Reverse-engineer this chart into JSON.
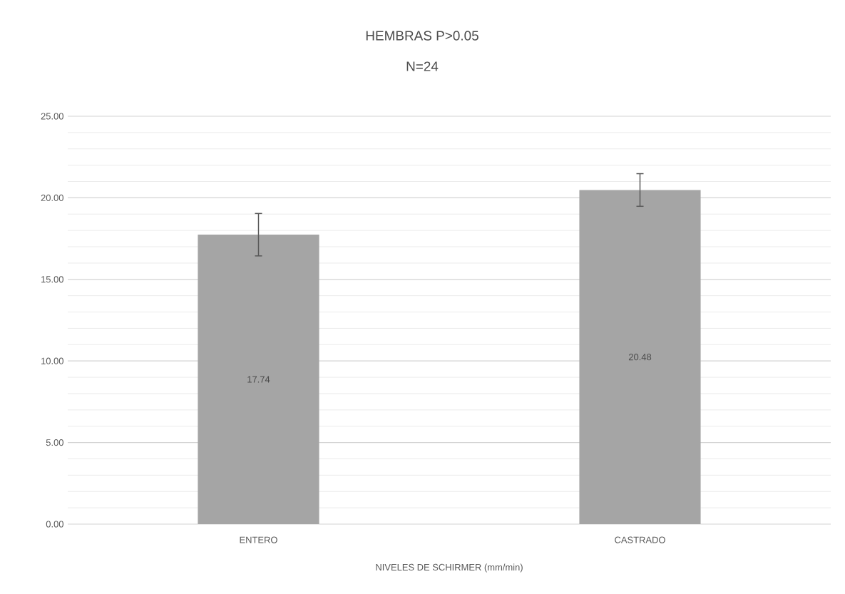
{
  "chart_data": {
    "type": "bar",
    "title": "HEMBRAS   P>0.05",
    "subtitle": "N=24",
    "xlabel": "NIVELES DE SCHIRMER  (mm/min)",
    "categories": [
      "ENTERO",
      "CASTRADO"
    ],
    "values": [
      17.74,
      20.48
    ],
    "errors": [
      1.3,
      1.0
    ],
    "color": "#a5a5a5",
    "data_labels": true,
    "ylim": [
      0,
      25
    ],
    "yticks": [
      {
        "value": 0,
        "label": "0.00"
      },
      {
        "value": 5,
        "label": "5.00"
      },
      {
        "value": 10,
        "label": "10.00"
      },
      {
        "value": 15,
        "label": "15.00"
      },
      {
        "value": 20,
        "label": "20.00"
      },
      {
        "value": 25,
        "label": "25.00"
      }
    ],
    "grid": "y"
  }
}
